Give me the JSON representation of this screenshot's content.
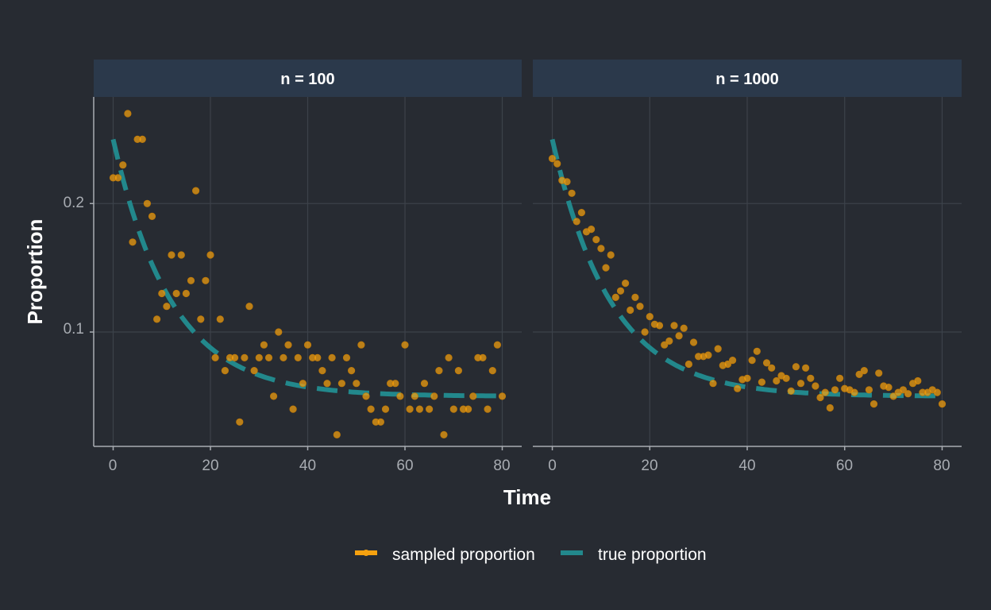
{
  "chart_data": {
    "type": "scatter",
    "title": "",
    "xlabel": "Time",
    "ylabel": "Proportion",
    "xlim": [
      -4,
      84
    ],
    "ylim": [
      0.011,
      0.283
    ],
    "x_ticks": [
      0,
      20,
      40,
      60,
      80
    ],
    "x_tick_labels": [
      "0",
      "20",
      "40",
      "60",
      "80"
    ],
    "y_ticks": [
      0.1,
      0.2
    ],
    "y_tick_labels": [
      "0.1",
      "0.2"
    ],
    "grid": true,
    "legend_position": "bottom",
    "legend": [
      {
        "label": "sampled proportion",
        "color": "#f5a10f",
        "kind": "point"
      },
      {
        "label": "true proportion",
        "color": "#22888c",
        "kind": "dashed-line"
      }
    ],
    "colors": {
      "background": "#272b32",
      "strip": "#2b394b",
      "grid": "#3c424a",
      "axis": "#a8acb2",
      "point": "#f5a10f",
      "line": "#22888c"
    },
    "true_curve": {
      "formula": "0.05 + 0.2 * exp(-t / 12)",
      "t_min": 0,
      "t_max": 80
    },
    "panels": [
      {
        "name": "n = 100",
        "series": [
          {
            "name": "sampled proportion",
            "x": [
              0,
              1,
              2,
              3,
              4,
              5,
              6,
              7,
              8,
              9,
              10,
              11,
              12,
              13,
              14,
              15,
              16,
              17,
              18,
              19,
              20,
              21,
              22,
              23,
              24,
              25,
              26,
              27,
              28,
              29,
              30,
              31,
              32,
              33,
              34,
              35,
              36,
              37,
              38,
              39,
              40,
              41,
              42,
              43,
              44,
              45,
              46,
              47,
              48,
              49,
              50,
              51,
              52,
              53,
              54,
              55,
              56,
              57,
              58,
              59,
              60,
              61,
              62,
              63,
              64,
              65,
              66,
              67,
              68,
              69,
              70,
              71,
              72,
              73,
              74,
              75,
              76,
              77,
              78,
              79,
              80
            ],
            "y": [
              0.22,
              0.22,
              0.23,
              0.27,
              0.17,
              0.25,
              0.25,
              0.2,
              0.19,
              0.11,
              0.13,
              0.12,
              0.16,
              0.13,
              0.16,
              0.13,
              0.14,
              0.21,
              0.11,
              0.14,
              0.16,
              0.08,
              0.11,
              0.07,
              0.08,
              0.08,
              0.03,
              0.08,
              0.12,
              0.07,
              0.08,
              0.09,
              0.08,
              0.05,
              0.1,
              0.08,
              0.09,
              0.04,
              0.08,
              0.06,
              0.09,
              0.08,
              0.08,
              0.07,
              0.06,
              0.08,
              0.02,
              0.06,
              0.08,
              0.07,
              0.06,
              0.09,
              0.05,
              0.04,
              0.03,
              0.03,
              0.04,
              0.06,
              0.06,
              0.05,
              0.09,
              0.04,
              0.05,
              0.04,
              0.06,
              0.04,
              0.05,
              0.07,
              0.02,
              0.08,
              0.04,
              0.07,
              0.04,
              0.04,
              0.05,
              0.08,
              0.08,
              0.04,
              0.07,
              0.09,
              0.05
            ]
          }
        ]
      },
      {
        "name": "n = 1000",
        "series": [
          {
            "name": "sampled proportion",
            "x": [
              0,
              1,
              2,
              3,
              4,
              5,
              6,
              7,
              8,
              9,
              10,
              11,
              12,
              13,
              14,
              15,
              16,
              17,
              18,
              19,
              20,
              21,
              22,
              23,
              24,
              25,
              26,
              27,
              28,
              29,
              30,
              31,
              32,
              33,
              34,
              35,
              36,
              37,
              38,
              39,
              40,
              41,
              42,
              43,
              44,
              45,
              46,
              47,
              48,
              49,
              50,
              51,
              52,
              53,
              54,
              55,
              56,
              57,
              58,
              59,
              60,
              61,
              62,
              63,
              64,
              65,
              66,
              67,
              68,
              69,
              70,
              71,
              72,
              73,
              74,
              75,
              76,
              77,
              78,
              79,
              80
            ],
            "y": [
              0.235,
              0.231,
              0.218,
              0.217,
              0.208,
              0.186,
              0.193,
              0.178,
              0.18,
              0.172,
              0.165,
              0.15,
              0.16,
              0.127,
              0.132,
              0.138,
              0.117,
              0.127,
              0.12,
              0.1,
              0.112,
              0.106,
              0.105,
              0.09,
              0.093,
              0.105,
              0.097,
              0.103,
              0.075,
              0.092,
              0.081,
              0.081,
              0.082,
              0.06,
              0.087,
              0.074,
              0.075,
              0.078,
              0.056,
              0.063,
              0.064,
              0.078,
              0.085,
              0.061,
              0.076,
              0.072,
              0.062,
              0.066,
              0.064,
              0.054,
              0.073,
              0.06,
              0.072,
              0.064,
              0.058,
              0.049,
              0.053,
              0.041,
              0.055,
              0.064,
              0.056,
              0.055,
              0.053,
              0.067,
              0.07,
              0.055,
              0.044,
              0.068,
              0.058,
              0.057,
              0.05,
              0.053,
              0.055,
              0.052,
              0.06,
              0.062,
              0.053,
              0.053,
              0.055,
              0.053,
              0.044
            ]
          }
        ]
      }
    ]
  }
}
